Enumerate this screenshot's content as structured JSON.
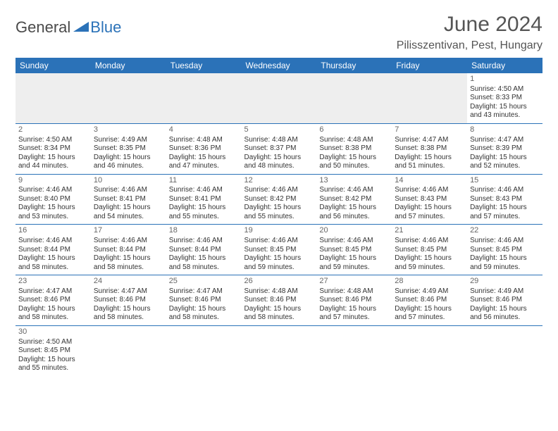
{
  "logo": {
    "text1": "General",
    "text2": "Blue"
  },
  "title": "June 2024",
  "location": "Pilisszentivan, Pest, Hungary",
  "colors": {
    "header_bg": "#2b72b8",
    "header_text": "#ffffff",
    "border": "#2b72b8",
    "empty_bg": "#eeeeee",
    "text": "#333333",
    "daynum": "#666666"
  },
  "day_headers": [
    "Sunday",
    "Monday",
    "Tuesday",
    "Wednesday",
    "Thursday",
    "Friday",
    "Saturday"
  ],
  "weeks": [
    [
      null,
      null,
      null,
      null,
      null,
      null,
      {
        "n": "1",
        "sr": "Sunrise: 4:50 AM",
        "ss": "Sunset: 8:33 PM",
        "d1": "Daylight: 15 hours",
        "d2": "and 43 minutes."
      }
    ],
    [
      {
        "n": "2",
        "sr": "Sunrise: 4:50 AM",
        "ss": "Sunset: 8:34 PM",
        "d1": "Daylight: 15 hours",
        "d2": "and 44 minutes."
      },
      {
        "n": "3",
        "sr": "Sunrise: 4:49 AM",
        "ss": "Sunset: 8:35 PM",
        "d1": "Daylight: 15 hours",
        "d2": "and 46 minutes."
      },
      {
        "n": "4",
        "sr": "Sunrise: 4:48 AM",
        "ss": "Sunset: 8:36 PM",
        "d1": "Daylight: 15 hours",
        "d2": "and 47 minutes."
      },
      {
        "n": "5",
        "sr": "Sunrise: 4:48 AM",
        "ss": "Sunset: 8:37 PM",
        "d1": "Daylight: 15 hours",
        "d2": "and 48 minutes."
      },
      {
        "n": "6",
        "sr": "Sunrise: 4:48 AM",
        "ss": "Sunset: 8:38 PM",
        "d1": "Daylight: 15 hours",
        "d2": "and 50 minutes."
      },
      {
        "n": "7",
        "sr": "Sunrise: 4:47 AM",
        "ss": "Sunset: 8:38 PM",
        "d1": "Daylight: 15 hours",
        "d2": "and 51 minutes."
      },
      {
        "n": "8",
        "sr": "Sunrise: 4:47 AM",
        "ss": "Sunset: 8:39 PM",
        "d1": "Daylight: 15 hours",
        "d2": "and 52 minutes."
      }
    ],
    [
      {
        "n": "9",
        "sr": "Sunrise: 4:46 AM",
        "ss": "Sunset: 8:40 PM",
        "d1": "Daylight: 15 hours",
        "d2": "and 53 minutes."
      },
      {
        "n": "10",
        "sr": "Sunrise: 4:46 AM",
        "ss": "Sunset: 8:41 PM",
        "d1": "Daylight: 15 hours",
        "d2": "and 54 minutes."
      },
      {
        "n": "11",
        "sr": "Sunrise: 4:46 AM",
        "ss": "Sunset: 8:41 PM",
        "d1": "Daylight: 15 hours",
        "d2": "and 55 minutes."
      },
      {
        "n": "12",
        "sr": "Sunrise: 4:46 AM",
        "ss": "Sunset: 8:42 PM",
        "d1": "Daylight: 15 hours",
        "d2": "and 55 minutes."
      },
      {
        "n": "13",
        "sr": "Sunrise: 4:46 AM",
        "ss": "Sunset: 8:42 PM",
        "d1": "Daylight: 15 hours",
        "d2": "and 56 minutes."
      },
      {
        "n": "14",
        "sr": "Sunrise: 4:46 AM",
        "ss": "Sunset: 8:43 PM",
        "d1": "Daylight: 15 hours",
        "d2": "and 57 minutes."
      },
      {
        "n": "15",
        "sr": "Sunrise: 4:46 AM",
        "ss": "Sunset: 8:43 PM",
        "d1": "Daylight: 15 hours",
        "d2": "and 57 minutes."
      }
    ],
    [
      {
        "n": "16",
        "sr": "Sunrise: 4:46 AM",
        "ss": "Sunset: 8:44 PM",
        "d1": "Daylight: 15 hours",
        "d2": "and 58 minutes."
      },
      {
        "n": "17",
        "sr": "Sunrise: 4:46 AM",
        "ss": "Sunset: 8:44 PM",
        "d1": "Daylight: 15 hours",
        "d2": "and 58 minutes."
      },
      {
        "n": "18",
        "sr": "Sunrise: 4:46 AM",
        "ss": "Sunset: 8:44 PM",
        "d1": "Daylight: 15 hours",
        "d2": "and 58 minutes."
      },
      {
        "n": "19",
        "sr": "Sunrise: 4:46 AM",
        "ss": "Sunset: 8:45 PM",
        "d1": "Daylight: 15 hours",
        "d2": "and 59 minutes."
      },
      {
        "n": "20",
        "sr": "Sunrise: 4:46 AM",
        "ss": "Sunset: 8:45 PM",
        "d1": "Daylight: 15 hours",
        "d2": "and 59 minutes."
      },
      {
        "n": "21",
        "sr": "Sunrise: 4:46 AM",
        "ss": "Sunset: 8:45 PM",
        "d1": "Daylight: 15 hours",
        "d2": "and 59 minutes."
      },
      {
        "n": "22",
        "sr": "Sunrise: 4:46 AM",
        "ss": "Sunset: 8:45 PM",
        "d1": "Daylight: 15 hours",
        "d2": "and 59 minutes."
      }
    ],
    [
      {
        "n": "23",
        "sr": "Sunrise: 4:47 AM",
        "ss": "Sunset: 8:46 PM",
        "d1": "Daylight: 15 hours",
        "d2": "and 58 minutes."
      },
      {
        "n": "24",
        "sr": "Sunrise: 4:47 AM",
        "ss": "Sunset: 8:46 PM",
        "d1": "Daylight: 15 hours",
        "d2": "and 58 minutes."
      },
      {
        "n": "25",
        "sr": "Sunrise: 4:47 AM",
        "ss": "Sunset: 8:46 PM",
        "d1": "Daylight: 15 hours",
        "d2": "and 58 minutes."
      },
      {
        "n": "26",
        "sr": "Sunrise: 4:48 AM",
        "ss": "Sunset: 8:46 PM",
        "d1": "Daylight: 15 hours",
        "d2": "and 58 minutes."
      },
      {
        "n": "27",
        "sr": "Sunrise: 4:48 AM",
        "ss": "Sunset: 8:46 PM",
        "d1": "Daylight: 15 hours",
        "d2": "and 57 minutes."
      },
      {
        "n": "28",
        "sr": "Sunrise: 4:49 AM",
        "ss": "Sunset: 8:46 PM",
        "d1": "Daylight: 15 hours",
        "d2": "and 57 minutes."
      },
      {
        "n": "29",
        "sr": "Sunrise: 4:49 AM",
        "ss": "Sunset: 8:46 PM",
        "d1": "Daylight: 15 hours",
        "d2": "and 56 minutes."
      }
    ],
    [
      {
        "n": "30",
        "sr": "Sunrise: 4:50 AM",
        "ss": "Sunset: 8:45 PM",
        "d1": "Daylight: 15 hours",
        "d2": "and 55 minutes."
      },
      null,
      null,
      null,
      null,
      null,
      null
    ]
  ]
}
